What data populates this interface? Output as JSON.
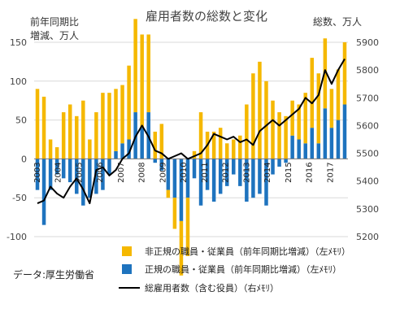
{
  "chart_data": {
    "type": "bar",
    "title": "雇用者数の総数と変化",
    "left_axis_label": [
      "前年同期比",
      "増減、万人"
    ],
    "right_axis_label": "総数、万人",
    "left_axis": {
      "min": -100,
      "max": 150,
      "ticks": [
        -100,
        -50,
        0,
        50,
        100,
        150
      ]
    },
    "right_axis": {
      "min": 5200,
      "max": 5900,
      "ticks": [
        5200,
        5300,
        5400,
        5500,
        5600,
        5700,
        5800,
        5900
      ]
    },
    "x_labels": [
      "2003",
      "2004",
      "2005",
      "2006",
      "2007",
      "2008",
      "2009",
      "2010",
      "2011",
      "2012",
      "2013",
      "2014",
      "2015",
      "2016",
      "2017"
    ],
    "grid": true,
    "legend_placement": "bottom",
    "series": [
      {
        "name": "非正規の職員・従業員（前年同期比増減）（左ﾒﾓﾘ）",
        "kind": "bar",
        "axis": "left",
        "color": "#F5B800",
        "values": [
          90,
          80,
          25,
          15,
          60,
          70,
          55,
          75,
          25,
          60,
          85,
          85,
          80,
          75,
          95,
          120,
          120,
          100,
          35,
          45,
          -10,
          -40,
          -70,
          -75,
          10,
          60,
          35,
          35,
          40,
          20,
          25,
          30,
          70,
          110,
          125,
          100,
          75,
          60,
          55,
          45,
          45,
          65,
          90,
          90,
          90,
          50,
          65,
          80
        ]
      },
      {
        "name": "正規の職員・従業員（前年同期比増減）（左ﾒﾓﾘ）",
        "kind": "bar",
        "axis": "left",
        "color": "#1E73BE",
        "values": [
          -40,
          -85,
          -40,
          -20,
          -25,
          -30,
          -45,
          -60,
          -50,
          -45,
          -40,
          -20,
          10,
          20,
          25,
          60,
          40,
          60,
          -5,
          -15,
          -40,
          -50,
          -80,
          -50,
          -25,
          -60,
          -40,
          -55,
          -45,
          -35,
          -20,
          -35,
          -55,
          -50,
          -45,
          -60,
          -20,
          -10,
          -5,
          30,
          25,
          20,
          40,
          20,
          65,
          40,
          50,
          70
        ]
      },
      {
        "name": "総雇用者数（含む役員）（右ﾒﾓﾘ）",
        "kind": "line",
        "axis": "right",
        "color": "#000000",
        "values": [
          5320,
          5330,
          5380,
          5355,
          5340,
          5380,
          5410,
          5370,
          5320,
          5440,
          5450,
          5420,
          5440,
          5480,
          5500,
          5560,
          5600,
          5560,
          5510,
          5500,
          5480,
          5490,
          5500,
          5480,
          5490,
          5500,
          5530,
          5570,
          5560,
          5550,
          5560,
          5540,
          5550,
          5530,
          5580,
          5600,
          5620,
          5600,
          5620,
          5640,
          5660,
          5700,
          5680,
          5710,
          5800,
          5750,
          5800,
          5840
        ]
      }
    ]
  },
  "source_label": "データ:厚生労働省"
}
